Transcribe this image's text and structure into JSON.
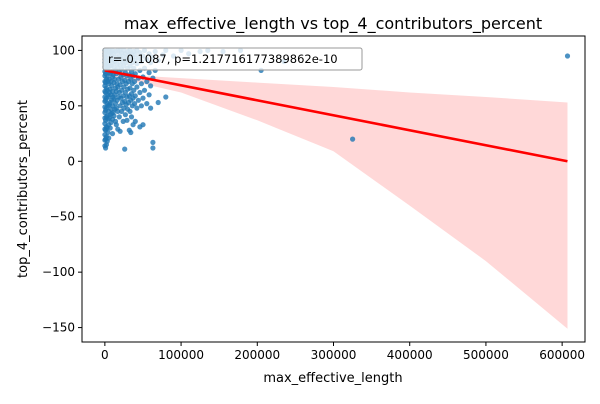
{
  "chart_data": {
    "type": "scatter",
    "title": "max_effective_length vs top_4_contributors_percent",
    "xlabel": "max_effective_length",
    "ylabel": "top_4_contributors_percent",
    "xlim": [
      -30000,
      630000
    ],
    "ylim": [
      -163,
      113
    ],
    "x_ticks": [
      0,
      100000,
      200000,
      300000,
      400000,
      500000,
      600000
    ],
    "x_tick_labels": [
      "0",
      "100000",
      "200000",
      "300000",
      "400000",
      "500000",
      "600000"
    ],
    "y_ticks": [
      -150,
      -100,
      -50,
      0,
      50,
      100
    ],
    "y_tick_labels": [
      "−150",
      "−100",
      "−50",
      "0",
      "50",
      "100"
    ],
    "annotation": "r=-0.1087, p=1.217716177389862e-10",
    "colors": {
      "points": "#1f77b4",
      "regression_line": "#ff0000",
      "confidence_band": "#ffc8c8"
    },
    "regression": {
      "x_start": 0,
      "y_start": 82,
      "x_end": 607000,
      "y_end": 0
    },
    "confidence_band": {
      "x": [
        0,
        20000,
        50000,
        100000,
        200000,
        300000,
        400000,
        500000,
        607000
      ],
      "upper": [
        84,
        81,
        77,
        75,
        71,
        67,
        62,
        58,
        53
      ],
      "lower": [
        78,
        75,
        70,
        62,
        37,
        9,
        -40,
        -90,
        -151
      ]
    },
    "points": [
      [
        0,
        100
      ],
      [
        0,
        97
      ],
      [
        0,
        95
      ],
      [
        0,
        92
      ],
      [
        0,
        89
      ],
      [
        0,
        85
      ],
      [
        0,
        81
      ],
      [
        0,
        77
      ],
      [
        0,
        72
      ],
      [
        0,
        68
      ],
      [
        0,
        63
      ],
      [
        0,
        58
      ],
      [
        0,
        54
      ],
      [
        0,
        49
      ],
      [
        0,
        44
      ],
      [
        0,
        39
      ],
      [
        0,
        34
      ],
      [
        0,
        29
      ],
      [
        0,
        24
      ],
      [
        0,
        19
      ],
      [
        0,
        14
      ],
      [
        1000,
        100
      ],
      [
        1000,
        94
      ],
      [
        1000,
        87
      ],
      [
        1000,
        79
      ],
      [
        1000,
        71
      ],
      [
        1000,
        62
      ],
      [
        1000,
        55
      ],
      [
        1000,
        46
      ],
      [
        1000,
        37
      ],
      [
        1000,
        28
      ],
      [
        1000,
        20
      ],
      [
        1000,
        12
      ],
      [
        2000,
        99
      ],
      [
        2000,
        91
      ],
      [
        2000,
        83
      ],
      [
        2000,
        74
      ],
      [
        2000,
        66
      ],
      [
        2000,
        57
      ],
      [
        2000,
        48
      ],
      [
        2000,
        40
      ],
      [
        2000,
        31
      ],
      [
        2000,
        22
      ],
      [
        2000,
        15
      ],
      [
        3000,
        100
      ],
      [
        3000,
        88
      ],
      [
        3000,
        76
      ],
      [
        3000,
        64
      ],
      [
        3000,
        52
      ],
      [
        3000,
        41
      ],
      [
        3000,
        30
      ],
      [
        3000,
        18
      ],
      [
        4000,
        96
      ],
      [
        4000,
        84
      ],
      [
        4000,
        72
      ],
      [
        4000,
        60
      ],
      [
        4000,
        50
      ],
      [
        4000,
        38
      ],
      [
        4000,
        26
      ],
      [
        5000,
        100
      ],
      [
        5000,
        90
      ],
      [
        5000,
        80
      ],
      [
        5000,
        70
      ],
      [
        5000,
        58
      ],
      [
        5000,
        45
      ],
      [
        5000,
        33
      ],
      [
        5000,
        21
      ],
      [
        6000,
        98
      ],
      [
        6000,
        86
      ],
      [
        6000,
        74
      ],
      [
        6000,
        62
      ],
      [
        6000,
        51
      ],
      [
        6000,
        39
      ],
      [
        7000,
        93
      ],
      [
        7000,
        79
      ],
      [
        7000,
        65
      ],
      [
        7000,
        53
      ],
      [
        7000,
        42
      ],
      [
        7000,
        30
      ],
      [
        8000,
        99
      ],
      [
        8000,
        86
      ],
      [
        8000,
        72
      ],
      [
        8000,
        60
      ],
      [
        8000,
        47
      ],
      [
        8000,
        35
      ],
      [
        9000,
        95
      ],
      [
        9000,
        81
      ],
      [
        9000,
        68
      ],
      [
        9000,
        55
      ],
      [
        9000,
        43
      ],
      [
        10000,
        100
      ],
      [
        10000,
        89
      ],
      [
        10000,
        76
      ],
      [
        10000,
        63
      ],
      [
        10000,
        50
      ],
      [
        10000,
        38
      ],
      [
        10000,
        25
      ],
      [
        11000,
        92
      ],
      [
        11000,
        78
      ],
      [
        11000,
        58
      ],
      [
        11000,
        44
      ],
      [
        12000,
        97
      ],
      [
        12000,
        85
      ],
      [
        12000,
        71
      ],
      [
        12000,
        56
      ],
      [
        12000,
        41
      ],
      [
        13000,
        90
      ],
      [
        13000,
        74
      ],
      [
        13000,
        60
      ],
      [
        13000,
        47
      ],
      [
        14000,
        99
      ],
      [
        14000,
        82
      ],
      [
        14000,
        66
      ],
      [
        14000,
        52
      ],
      [
        14000,
        36
      ],
      [
        15000,
        94
      ],
      [
        15000,
        79
      ],
      [
        15000,
        63
      ],
      [
        15000,
        48
      ],
      [
        15000,
        33
      ],
      [
        16000,
        88
      ],
      [
        16000,
        70
      ],
      [
        16000,
        55
      ],
      [
        17000,
        100
      ],
      [
        17000,
        84
      ],
      [
        17000,
        67
      ],
      [
        17000,
        45
      ],
      [
        17000,
        29
      ],
      [
        18000,
        92
      ],
      [
        18000,
        74
      ],
      [
        18000,
        58
      ],
      [
        19000,
        96
      ],
      [
        19000,
        80
      ],
      [
        19000,
        62
      ],
      [
        19000,
        40
      ],
      [
        20000,
        100
      ],
      [
        20000,
        87
      ],
      [
        20000,
        69
      ],
      [
        20000,
        50
      ],
      [
        20000,
        27
      ],
      [
        21000,
        93
      ],
      [
        21000,
        76
      ],
      [
        21000,
        57
      ],
      [
        22000,
        98
      ],
      [
        22000,
        83
      ],
      [
        22000,
        64
      ],
      [
        22000,
        45
      ],
      [
        23000,
        90
      ],
      [
        23000,
        72
      ],
      [
        23000,
        53
      ],
      [
        24000,
        95
      ],
      [
        24000,
        78
      ],
      [
        24000,
        59
      ],
      [
        24000,
        36
      ],
      [
        25000,
        100
      ],
      [
        25000,
        86
      ],
      [
        25000,
        67
      ],
      [
        25000,
        48
      ],
      [
        26000,
        91
      ],
      [
        26000,
        73
      ],
      [
        26000,
        54
      ],
      [
        26000,
        11
      ],
      [
        27000,
        97
      ],
      [
        27000,
        80
      ],
      [
        27000,
        62
      ],
      [
        27000,
        42
      ],
      [
        28000,
        89
      ],
      [
        28000,
        70
      ],
      [
        28000,
        51
      ],
      [
        29000,
        94
      ],
      [
        29000,
        77
      ],
      [
        29000,
        58
      ],
      [
        29000,
        37
      ],
      [
        30000,
        99
      ],
      [
        30000,
        84
      ],
      [
        30000,
        65
      ],
      [
        30000,
        47
      ],
      [
        31000,
        91
      ],
      [
        31000,
        72
      ],
      [
        31000,
        53
      ],
      [
        32000,
        96
      ],
      [
        32000,
        78
      ],
      [
        32000,
        59
      ],
      [
        32000,
        28
      ],
      [
        33000,
        100
      ],
      [
        33000,
        86
      ],
      [
        33000,
        66
      ],
      [
        33000,
        45
      ],
      [
        34000,
        92
      ],
      [
        34000,
        74
      ],
      [
        34000,
        55
      ],
      [
        34000,
        26
      ],
      [
        35000,
        97
      ],
      [
        35000,
        81
      ],
      [
        35000,
        61
      ],
      [
        35000,
        40
      ],
      [
        36000,
        89
      ],
      [
        36000,
        70
      ],
      [
        36000,
        50
      ],
      [
        37000,
        94
      ],
      [
        37000,
        77
      ],
      [
        37000,
        57
      ],
      [
        37000,
        33
      ],
      [
        38000,
        99
      ],
      [
        38000,
        84
      ],
      [
        38000,
        64
      ],
      [
        39000,
        91
      ],
      [
        39000,
        72
      ],
      [
        39000,
        52
      ],
      [
        40000,
        96
      ],
      [
        40000,
        79
      ],
      [
        40000,
        59
      ],
      [
        40000,
        36
      ],
      [
        42000,
        100
      ],
      [
        42000,
        88
      ],
      [
        42000,
        67
      ],
      [
        42000,
        48
      ],
      [
        44000,
        93
      ],
      [
        44000,
        75
      ],
      [
        44000,
        55
      ],
      [
        46000,
        98
      ],
      [
        46000,
        82
      ],
      [
        46000,
        62
      ],
      [
        46000,
        31
      ],
      [
        48000,
        90
      ],
      [
        48000,
        70
      ],
      [
        48000,
        50
      ],
      [
        50000,
        95
      ],
      [
        50000,
        76
      ],
      [
        50000,
        57
      ],
      [
        50000,
        33
      ],
      [
        52000,
        100
      ],
      [
        52000,
        84
      ],
      [
        52000,
        64
      ],
      [
        55000,
        92
      ],
      [
        55000,
        72
      ],
      [
        55000,
        52
      ],
      [
        58000,
        97
      ],
      [
        58000,
        80
      ],
      [
        58000,
        60
      ],
      [
        60000,
        89
      ],
      [
        60000,
        68
      ],
      [
        60000,
        48
      ],
      [
        63000,
        94
      ],
      [
        63000,
        75
      ],
      [
        63000,
        17
      ],
      [
        63000,
        12
      ],
      [
        66000,
        99
      ],
      [
        66000,
        82
      ],
      [
        70000,
        91
      ],
      [
        70000,
        53
      ],
      [
        76000,
        96
      ],
      [
        80000,
        100
      ],
      [
        80000,
        58
      ],
      [
        90000,
        95
      ],
      [
        100000,
        100
      ],
      [
        110000,
        97
      ],
      [
        125000,
        99
      ],
      [
        135000,
        100
      ],
      [
        155000,
        99
      ],
      [
        178000,
        100
      ],
      [
        205000,
        82
      ],
      [
        235000,
        90
      ],
      [
        325000,
        20
      ],
      [
        607000,
        95
      ]
    ]
  }
}
